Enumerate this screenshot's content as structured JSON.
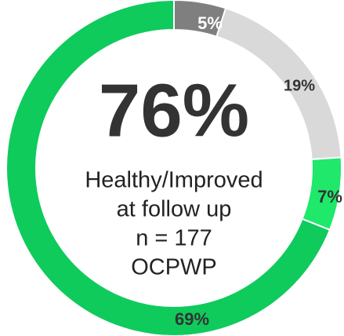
{
  "chart_data": {
    "type": "donut",
    "categories": [
      "5%",
      "19%",
      "7%",
      "69%"
    ],
    "values": [
      5,
      19,
      7,
      69
    ],
    "value_labels": [
      "5%",
      "19%",
      "7%",
      "69%"
    ],
    "colors": [
      "#7f7f7f",
      "#d9d9d9",
      "#1fe86b",
      "#0fcb5c"
    ],
    "annotations": [
      "76%",
      "Healthy/Improved",
      "at follow up",
      "n = 177",
      "OCPWP"
    ]
  }
}
